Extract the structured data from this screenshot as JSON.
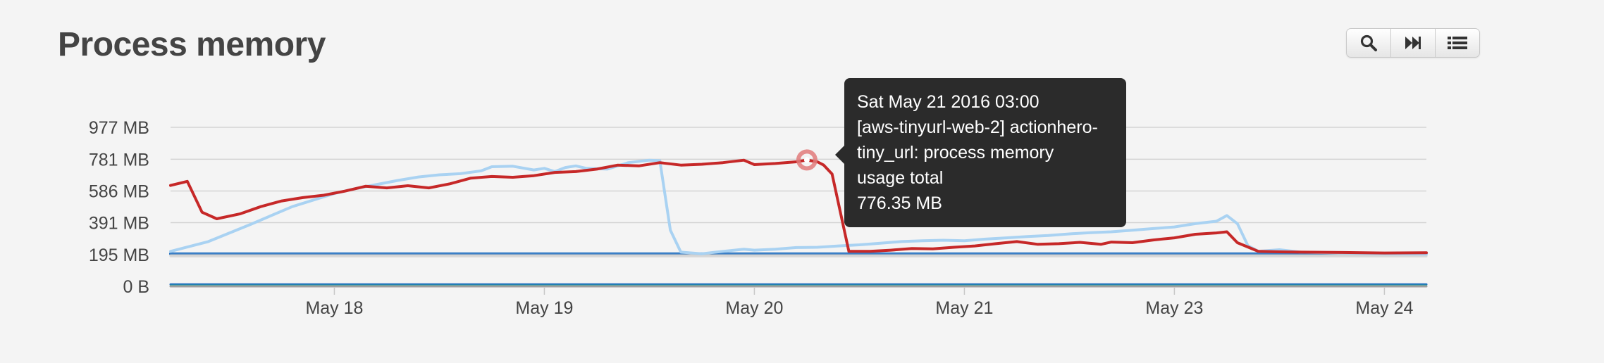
{
  "page": {
    "title": "Process memory"
  },
  "toolbar": {
    "buttons": [
      {
        "name": "zoom-button",
        "icon": "search-icon"
      },
      {
        "name": "fast-forward-button",
        "icon": "fast-forward-icon"
      },
      {
        "name": "list-button",
        "icon": "list-icon"
      }
    ]
  },
  "tooltip": {
    "lines": [
      "Sat May 21 2016 03:00",
      "[aws-tinyurl-web-2] actionhero-",
      "tiny_url: process memory",
      "usage total",
      "776.35 MB"
    ]
  },
  "chart_data": {
    "type": "line",
    "ylim_mb": [
      0,
      977
    ],
    "y_ticks": [
      {
        "label": "977 MB",
        "value": 977
      },
      {
        "label": "781 MB",
        "value": 781
      },
      {
        "label": "586 MB",
        "value": 586
      },
      {
        "label": "391 MB",
        "value": 391
      },
      {
        "label": "195 MB",
        "value": 195
      },
      {
        "label": "0 B",
        "value": 0
      }
    ],
    "x_ticks": [
      "May 18",
      "May 19",
      "May 20",
      "May 21",
      "May 23",
      "May 24"
    ],
    "x_tick_positions_day": [
      1,
      2,
      3,
      4,
      5,
      6
    ],
    "xlim_day": [
      0.22,
      6.2
    ],
    "grid": true,
    "colors": {
      "highlight": "#c62828",
      "light_blue": "#a9d2f2",
      "blue": "#1f6dbf",
      "gray": "#bdbdbd",
      "marker": "#e07a7a"
    },
    "highlighted_point": {
      "x_day": 3.25,
      "value_mb": 776.35
    },
    "series": [
      {
        "color": "#a9d2f2",
        "width": 4,
        "points": [
          [
            0.22,
            215
          ],
          [
            0.4,
            275
          ],
          [
            0.6,
            380
          ],
          [
            0.8,
            490
          ],
          [
            1.0,
            570
          ],
          [
            1.1,
            600
          ],
          [
            1.2,
            625
          ],
          [
            1.3,
            650
          ],
          [
            1.4,
            672
          ],
          [
            1.5,
            685
          ],
          [
            1.6,
            692
          ],
          [
            1.7,
            710
          ],
          [
            1.75,
            735
          ],
          [
            1.85,
            738
          ],
          [
            1.95,
            715
          ],
          [
            2.0,
            725
          ],
          [
            2.05,
            705
          ],
          [
            2.1,
            730
          ],
          [
            2.15,
            740
          ],
          [
            2.2,
            725
          ],
          [
            2.3,
            720
          ],
          [
            2.4,
            760
          ],
          [
            2.5,
            775
          ],
          [
            2.55,
            772
          ],
          [
            2.6,
            345
          ],
          [
            2.65,
            210
          ],
          [
            2.75,
            200
          ],
          [
            2.85,
            215
          ],
          [
            2.95,
            228
          ],
          [
            3.0,
            222
          ],
          [
            3.1,
            228
          ],
          [
            3.2,
            238
          ],
          [
            3.3,
            240
          ],
          [
            3.4,
            248
          ],
          [
            3.5,
            255
          ],
          [
            3.6,
            265
          ],
          [
            3.7,
            275
          ],
          [
            3.8,
            280
          ],
          [
            3.9,
            283
          ],
          [
            4.0,
            280
          ],
          [
            4.1,
            290
          ],
          [
            4.2,
            298
          ],
          [
            4.3,
            306
          ],
          [
            4.4,
            312
          ],
          [
            4.5,
            322
          ],
          [
            4.6,
            330
          ],
          [
            4.7,
            335
          ],
          [
            4.8,
            345
          ],
          [
            4.9,
            355
          ],
          [
            5.0,
            365
          ],
          [
            5.1,
            385
          ],
          [
            5.2,
            400
          ],
          [
            5.25,
            435
          ],
          [
            5.3,
            385
          ],
          [
            5.35,
            250
          ],
          [
            5.4,
            215
          ],
          [
            5.5,
            225
          ],
          [
            5.6,
            210
          ],
          [
            5.8,
            205
          ],
          [
            6.0,
            200
          ],
          [
            6.2,
            198
          ]
        ]
      },
      {
        "color": "#c62828",
        "width": 4,
        "points": [
          [
            0.22,
            620
          ],
          [
            0.3,
            645
          ],
          [
            0.37,
            455
          ],
          [
            0.44,
            415
          ],
          [
            0.55,
            445
          ],
          [
            0.65,
            490
          ],
          [
            0.75,
            525
          ],
          [
            0.85,
            545
          ],
          [
            0.95,
            560
          ],
          [
            1.05,
            585
          ],
          [
            1.15,
            615
          ],
          [
            1.25,
            605
          ],
          [
            1.35,
            618
          ],
          [
            1.45,
            605
          ],
          [
            1.55,
            630
          ],
          [
            1.65,
            665
          ],
          [
            1.75,
            675
          ],
          [
            1.85,
            670
          ],
          [
            1.95,
            680
          ],
          [
            2.05,
            700
          ],
          [
            2.15,
            705
          ],
          [
            2.25,
            720
          ],
          [
            2.35,
            745
          ],
          [
            2.45,
            740
          ],
          [
            2.55,
            760
          ],
          [
            2.65,
            745
          ],
          [
            2.75,
            750
          ],
          [
            2.85,
            760
          ],
          [
            2.95,
            775
          ],
          [
            3.0,
            748
          ],
          [
            3.1,
            755
          ],
          [
            3.2,
            765
          ],
          [
            3.25,
            776
          ],
          [
            3.3,
            765
          ],
          [
            3.33,
            745
          ],
          [
            3.37,
            690
          ],
          [
            3.45,
            215
          ],
          [
            3.55,
            215
          ],
          [
            3.65,
            222
          ],
          [
            3.75,
            232
          ],
          [
            3.85,
            230
          ],
          [
            3.95,
            240
          ],
          [
            4.05,
            248
          ],
          [
            4.15,
            262
          ],
          [
            4.25,
            275
          ],
          [
            4.35,
            258
          ],
          [
            4.45,
            262
          ],
          [
            4.55,
            270
          ],
          [
            4.65,
            258
          ],
          [
            4.7,
            272
          ],
          [
            4.8,
            268
          ],
          [
            4.9,
            285
          ],
          [
            5.0,
            298
          ],
          [
            5.1,
            320
          ],
          [
            5.2,
            328
          ],
          [
            5.25,
            335
          ],
          [
            5.3,
            268
          ],
          [
            5.4,
            215
          ],
          [
            5.5,
            212
          ],
          [
            5.6,
            210
          ],
          [
            5.8,
            208
          ],
          [
            6.0,
            205
          ],
          [
            6.2,
            206
          ]
        ]
      },
      {
        "color": "#1f6dbf",
        "width": 4,
        "points": [
          [
            0.22,
            200
          ],
          [
            6.2,
            200
          ]
        ]
      },
      {
        "color": "#3a7fc7",
        "width": 2,
        "points": [
          [
            0.22,
            203
          ],
          [
            6.2,
            203
          ]
        ]
      },
      {
        "color": "#c9c9c9",
        "width": 3,
        "points": [
          [
            0.22,
            190
          ],
          [
            6.2,
            190
          ]
        ]
      },
      {
        "color": "#d8d8d8",
        "width": 3,
        "points": [
          [
            0.22,
            184
          ],
          [
            6.2,
            184
          ]
        ]
      },
      {
        "color": "#1f6dbf",
        "width": 3,
        "points": [
          [
            0.22,
            12
          ],
          [
            6.2,
            12
          ]
        ]
      },
      {
        "color": "#26a69a",
        "width": 2,
        "points": [
          [
            0.22,
            6
          ],
          [
            6.2,
            6
          ]
        ]
      },
      {
        "color": "#9e9e9e",
        "width": 3,
        "points": [
          [
            0.22,
            0
          ],
          [
            6.2,
            0
          ]
        ]
      }
    ]
  }
}
